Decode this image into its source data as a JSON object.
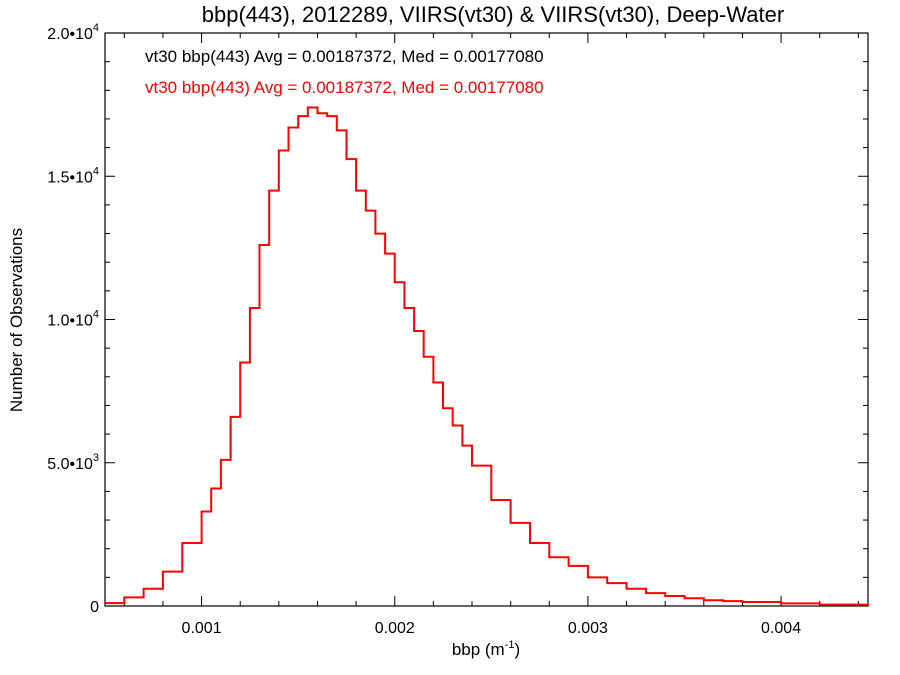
{
  "chart_data": {
    "type": "line",
    "step": true,
    "title": "bbp(443), 2012289, VIIRS(vt30) & VIIRS(vt30), Deep-Water",
    "xlabel": {
      "base": "bbp (m",
      "sup": "-1",
      "suffix": ")"
    },
    "ylabel": "Number of Observations",
    "xlim": [
      0.0005,
      0.00445
    ],
    "ylim": [
      0,
      20000
    ],
    "x_ticks": [
      {
        "value": 0.001,
        "label": "0.001"
      },
      {
        "value": 0.002,
        "label": "0.002"
      },
      {
        "value": 0.003,
        "label": "0.003"
      },
      {
        "value": 0.004,
        "label": "0.004"
      }
    ],
    "y_ticks": [
      {
        "value": 0,
        "label": "0",
        "sup": ""
      },
      {
        "value": 5000,
        "label": "5.0•10",
        "sup": "3"
      },
      {
        "value": 10000,
        "label": "1.0•10",
        "sup": "4"
      },
      {
        "value": 15000,
        "label": "1.5•10",
        "sup": "4"
      },
      {
        "value": 20000,
        "label": "2.0•10",
        "sup": "4"
      }
    ],
    "annotations": [
      {
        "text": "vt30 bbp(443) Avg = 0.00187372, Med = 0.00177080",
        "color": "#000000"
      },
      {
        "text": "vt30 bbp(443) Avg = 0.00187372, Med = 0.00177080",
        "color": "#ff0000"
      }
    ],
    "series": [
      {
        "color": "#ff0000",
        "x": [
          0.0005,
          0.0006,
          0.0007,
          0.0008,
          0.0009,
          0.001,
          0.00105,
          0.0011,
          0.00115,
          0.0012,
          0.00125,
          0.0013,
          0.00135,
          0.0014,
          0.00145,
          0.0015,
          0.00155,
          0.0016,
          0.00165,
          0.0017,
          0.00175,
          0.0018,
          0.00185,
          0.0019,
          0.00195,
          0.002,
          0.00205,
          0.0021,
          0.00215,
          0.0022,
          0.00225,
          0.0023,
          0.00235,
          0.0024,
          0.0025,
          0.0026,
          0.0027,
          0.0028,
          0.0029,
          0.003,
          0.0031,
          0.0032,
          0.0033,
          0.0034,
          0.0035,
          0.0036,
          0.0037,
          0.0038,
          0.004,
          0.0042,
          0.00445
        ],
        "y": [
          100,
          300,
          600,
          1200,
          2200,
          3300,
          4100,
          5100,
          6600,
          8500,
          10400,
          12600,
          14500,
          15900,
          16700,
          17100,
          17400,
          17200,
          17100,
          16600,
          15600,
          14500,
          13800,
          13000,
          12300,
          11300,
          10400,
          9600,
          8700,
          7800,
          6900,
          6300,
          5600,
          4900,
          3700,
          2900,
          2200,
          1700,
          1400,
          1000,
          800,
          600,
          450,
          350,
          270,
          200,
          170,
          140,
          90,
          50,
          20
        ]
      }
    ]
  }
}
